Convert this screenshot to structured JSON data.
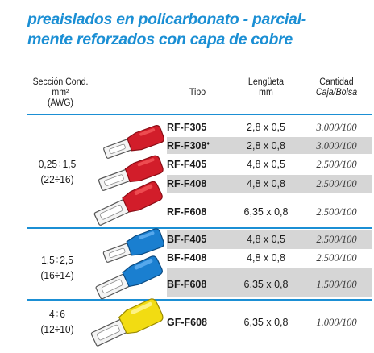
{
  "title": {
    "line1": "preaislados en policarbonato - parcial-",
    "line2": "mente reforzados con capa de cobre"
  },
  "headers": {
    "seccion": {
      "line1": "Sección Cond.",
      "line2": "mm²",
      "line3": "(AWG)"
    },
    "tipo": "Tipo",
    "lenguera": {
      "line1": "Lengüeta",
      "line2": "mm"
    },
    "cantidad": {
      "line1": "Cantidad",
      "line2": "Caja/Bolsa"
    }
  },
  "sections": [
    {
      "range": "0,25÷1,5",
      "awg": "(22÷16)"
    },
    {
      "range": "1,5÷2,5",
      "awg": "(16÷14)"
    },
    {
      "range": "4÷6",
      "awg": "(12÷10)"
    }
  ],
  "rows": [
    {
      "tipo": "RF-F305",
      "mark": "",
      "lengueta": "2,8 x 0,5",
      "cantidad": "3.000/100"
    },
    {
      "tipo": "RF-F308",
      "mark": "♦",
      "lengueta": "2,8 x 0,8",
      "cantidad": "3.000/100"
    },
    {
      "tipo": "RF-F405",
      "mark": "",
      "lengueta": "4,8 x 0,5",
      "cantidad": "2.500/100"
    },
    {
      "tipo": "RF-F408",
      "mark": "",
      "lengueta": "4,8 x 0,8",
      "cantidad": "2.500/100"
    },
    {
      "tipo": "RF-F608",
      "mark": "",
      "lengueta": "6,35 x 0,8",
      "cantidad": "2.500/100"
    },
    {
      "tipo": "BF-F405",
      "mark": "",
      "lengueta": "4,8 x 0,5",
      "cantidad": "2.500/100"
    },
    {
      "tipo": "BF-F408",
      "mark": "",
      "lengueta": "4,8 x 0,8",
      "cantidad": "2.500/100"
    },
    {
      "tipo": "BF-F608",
      "mark": "",
      "lengueta": "6,35 x 0,8",
      "cantidad": "1.500/100"
    },
    {
      "tipo": "GF-F608",
      "mark": "",
      "lengueta": "6,35 x 0,8",
      "cantidad": "1.000/100"
    }
  ],
  "colors": {
    "accent": "#1b8fd4",
    "shade": "#d6d6d6",
    "red_terminal": "#d21d2a",
    "blue_terminal": "#1a7fd0",
    "yellow_terminal": "#f2dc12"
  },
  "icons": [
    "red-terminal-icon",
    "blue-terminal-icon",
    "yellow-terminal-icon"
  ]
}
